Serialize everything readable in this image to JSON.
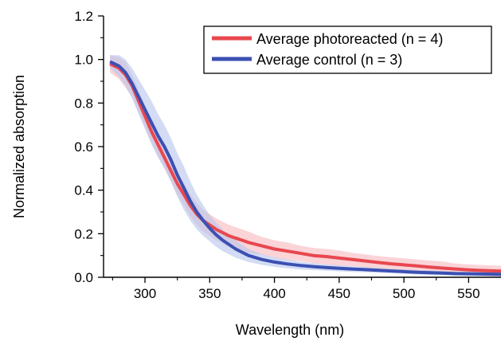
{
  "chart_data": {
    "type": "line",
    "title": "",
    "xlabel": "Wavelength (nm)",
    "ylabel": "Normalized absorption",
    "xlim": [
      268,
      575
    ],
    "ylim": [
      0,
      1.2
    ],
    "xticks": [
      300,
      350,
      400,
      450,
      500,
      550
    ],
    "yticks": [
      0.0,
      0.2,
      0.4,
      0.6,
      0.8,
      1.0,
      1.2
    ],
    "xtick_labels": [
      "300",
      "350",
      "400",
      "450",
      "500",
      "550"
    ],
    "ytick_labels": [
      "0.0",
      "0.2",
      "0.4",
      "0.6",
      "0.8",
      "1.0",
      "1.2"
    ],
    "grid": false,
    "legend_position": "top-right",
    "series": [
      {
        "name": "Average photoreacted (n = 4)",
        "color": "#e8474f",
        "band_color": "#f6b8bd",
        "x": [
          273,
          280,
          285,
          290,
          295,
          300,
          305,
          310,
          315,
          320,
          325,
          330,
          335,
          340,
          345,
          350,
          355,
          360,
          365,
          370,
          375,
          380,
          390,
          400,
          410,
          420,
          430,
          440,
          450,
          460,
          470,
          480,
          490,
          500,
          510,
          520,
          530,
          540,
          550,
          560,
          575
        ],
        "y": [
          0.98,
          0.96,
          0.93,
          0.88,
          0.81,
          0.74,
          0.67,
          0.61,
          0.55,
          0.49,
          0.43,
          0.38,
          0.33,
          0.29,
          0.26,
          0.24,
          0.22,
          0.205,
          0.19,
          0.18,
          0.17,
          0.16,
          0.145,
          0.13,
          0.12,
          0.11,
          0.1,
          0.095,
          0.088,
          0.082,
          0.075,
          0.068,
          0.062,
          0.057,
          0.052,
          0.047,
          0.042,
          0.038,
          0.034,
          0.031,
          0.028
        ],
        "band": [
          0.04,
          0.05,
          0.06,
          0.05,
          0.05,
          0.05,
          0.05,
          0.05,
          0.05,
          0.05,
          0.05,
          0.05,
          0.05,
          0.05,
          0.05,
          0.05,
          0.05,
          0.05,
          0.05,
          0.05,
          0.05,
          0.05,
          0.04,
          0.04,
          0.04,
          0.035,
          0.035,
          0.035,
          0.035,
          0.03,
          0.03,
          0.03,
          0.03,
          0.03,
          0.03,
          0.03,
          0.03,
          0.025,
          0.025,
          0.025,
          0.025
        ]
      },
      {
        "name": "Average control (n = 3)",
        "color": "#3b50b2",
        "band_color": "#b6c4ec",
        "x": [
          273,
          280,
          285,
          290,
          295,
          300,
          305,
          310,
          315,
          320,
          325,
          330,
          335,
          340,
          345,
          350,
          355,
          360,
          365,
          370,
          375,
          380,
          390,
          400,
          410,
          420,
          430,
          440,
          450,
          460,
          470,
          480,
          490,
          500,
          510,
          520,
          530,
          540,
          550,
          560,
          575
        ],
        "y": [
          0.99,
          0.97,
          0.94,
          0.89,
          0.83,
          0.77,
          0.71,
          0.65,
          0.6,
          0.54,
          0.47,
          0.41,
          0.35,
          0.3,
          0.26,
          0.225,
          0.195,
          0.17,
          0.15,
          0.13,
          0.115,
          0.1,
          0.082,
          0.07,
          0.061,
          0.054,
          0.049,
          0.045,
          0.041,
          0.038,
          0.035,
          0.032,
          0.029,
          0.026,
          0.023,
          0.021,
          0.019,
          0.017,
          0.016,
          0.015,
          0.014
        ],
        "band": [
          0.03,
          0.05,
          0.06,
          0.07,
          0.08,
          0.09,
          0.1,
          0.1,
          0.1,
          0.1,
          0.1,
          0.1,
          0.09,
          0.08,
          0.07,
          0.06,
          0.055,
          0.05,
          0.045,
          0.04,
          0.035,
          0.03,
          0.025,
          0.022,
          0.02,
          0.018,
          0.016,
          0.015,
          0.014,
          0.013,
          0.012,
          0.011,
          0.01,
          0.01,
          0.01,
          0.01,
          0.01,
          0.01,
          0.01,
          0.01,
          0.01
        ]
      }
    ]
  }
}
